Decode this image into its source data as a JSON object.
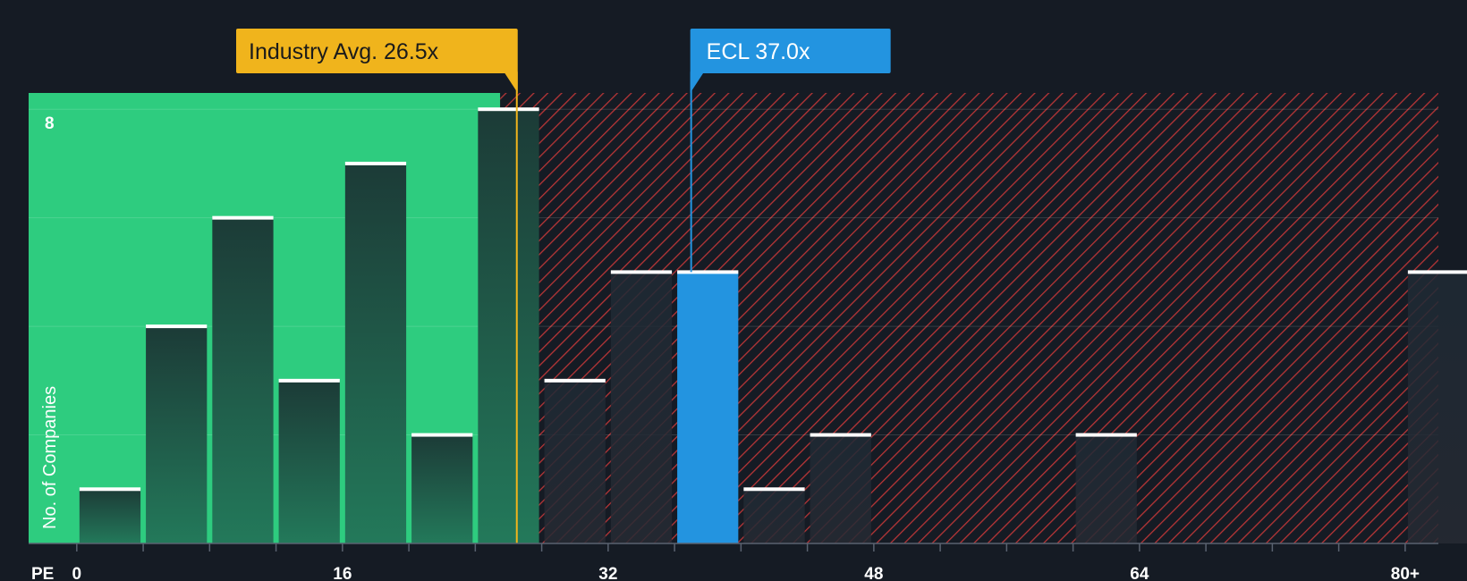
{
  "chart_data": {
    "type": "bar",
    "xlabel": "PE",
    "ylabel": "No. of Companies",
    "x_ticks": [
      "0",
      "16",
      "32",
      "48",
      "64",
      "80+"
    ],
    "x_tick_values": [
      0,
      16,
      32,
      48,
      64,
      80
    ],
    "y_ticks": [
      "8"
    ],
    "y_tick_values": [
      8
    ],
    "xlim": [
      -2.9,
      82.0
    ],
    "ylim": [
      0,
      8.3
    ],
    "bin_width": 4,
    "bars": [
      {
        "x": 2,
        "value": 1
      },
      {
        "x": 6,
        "value": 4
      },
      {
        "x": 10,
        "value": 6
      },
      {
        "x": 14,
        "value": 3
      },
      {
        "x": 18,
        "value": 7
      },
      {
        "x": 22,
        "value": 2
      },
      {
        "x": 26,
        "value": 8
      },
      {
        "x": 30,
        "value": 3
      },
      {
        "x": 34,
        "value": 5
      },
      {
        "x": 38,
        "value": 5,
        "highlight": true
      },
      {
        "x": 42,
        "value": 1
      },
      {
        "x": 46,
        "value": 2
      },
      {
        "x": 62,
        "value": 2
      },
      {
        "x": 82,
        "value": 5
      }
    ],
    "fair_zone_end": 25.5,
    "industry_avg": {
      "label": "Industry Avg. 26.5x",
      "value": 26.5,
      "color": "#f0b41c"
    },
    "company": {
      "label": "ECL 37.0x",
      "value": 37.0,
      "color": "#2394e0"
    },
    "colors": {
      "background": "#151b24",
      "fair_zone": "#2ecc7f",
      "bar_dark": "#1f3d38",
      "expensive_hatch": "#d33a3a",
      "bar_top": "#ffffff"
    }
  }
}
